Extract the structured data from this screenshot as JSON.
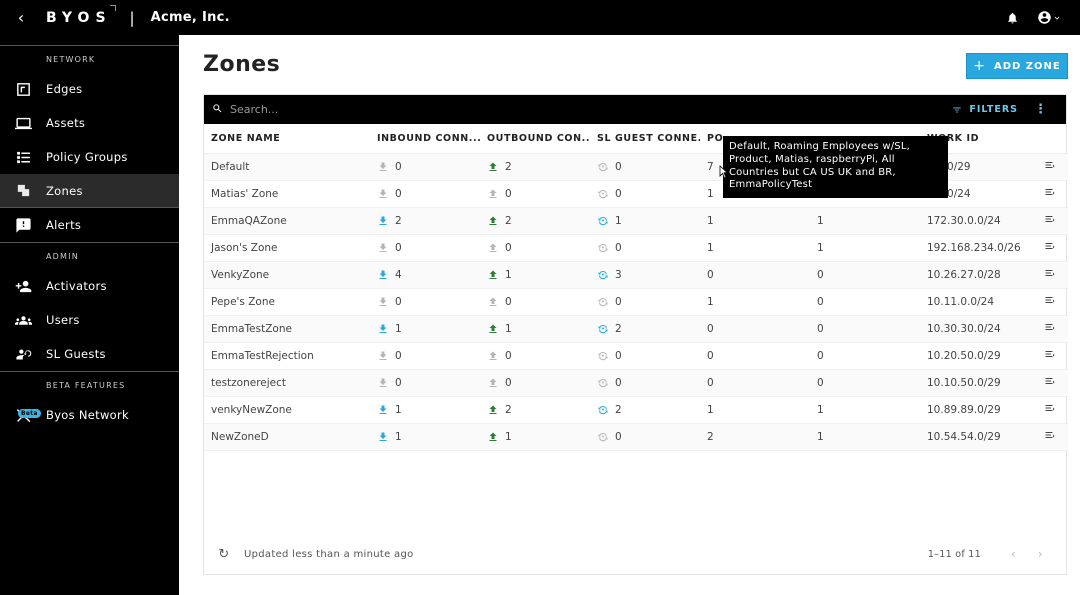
{
  "topbar": {
    "back_icon": "chevron-left-icon",
    "logo": "BYOS",
    "separator": "|",
    "company": "Acme, Inc."
  },
  "sidebar": {
    "sections": [
      {
        "title": "NETWORK",
        "items": [
          {
            "label": "Edges",
            "icon": "edges-icon",
            "active": false
          },
          {
            "label": "Assets",
            "icon": "laptop-icon",
            "active": false
          },
          {
            "label": "Policy Groups",
            "icon": "policy-icon",
            "active": false
          },
          {
            "label": "Zones",
            "icon": "zones-icon",
            "active": true
          },
          {
            "label": "Alerts",
            "icon": "alert-icon",
            "active": false
          }
        ]
      },
      {
        "title": "ADMIN",
        "items": [
          {
            "label": "Activators",
            "icon": "person-add-icon",
            "active": false
          },
          {
            "label": "Users",
            "icon": "people-icon",
            "active": false
          },
          {
            "label": "SL Guests",
            "icon": "guest-icon",
            "active": false
          }
        ]
      },
      {
        "title": "BETA FEATURES",
        "items": [
          {
            "label": "Byos Network",
            "icon": "network-icon",
            "active": false,
            "badge": "Beta"
          }
        ]
      }
    ]
  },
  "main": {
    "title": "Zones",
    "add_button": "ADD ZONE",
    "search_placeholder": "Search...",
    "filters_label": "FILTERS",
    "columns": [
      "ZONE NAME",
      "INBOUND CONN...",
      "OUTBOUND CON...",
      "SL GUEST CONNE...",
      "PO",
      "",
      "WORK ID",
      ""
    ],
    "rows": [
      {
        "name": "Default",
        "inbound": "0",
        "outbound": "2",
        "guest": "0",
        "po": "7",
        "col6": "",
        "network": "0.0.0/29"
      },
      {
        "name": "Matias' Zone",
        "inbound": "0",
        "outbound": "0",
        "guest": "0",
        "po": "1",
        "col6": "",
        "network": "0.0.0/24"
      },
      {
        "name": "EmmaQAZone",
        "inbound": "2",
        "outbound": "2",
        "guest": "1",
        "po": "1",
        "col6": "1",
        "network": "172.30.0.0/24"
      },
      {
        "name": "Jason's Zone",
        "inbound": "0",
        "outbound": "0",
        "guest": "0",
        "po": "1",
        "col6": "1",
        "network": "192.168.234.0/26"
      },
      {
        "name": "VenkyZone",
        "inbound": "4",
        "outbound": "1",
        "guest": "3",
        "po": "0",
        "col6": "0",
        "network": "10.26.27.0/28"
      },
      {
        "name": "Pepe's Zone",
        "inbound": "0",
        "outbound": "0",
        "guest": "0",
        "po": "1",
        "col6": "0",
        "network": "10.11.0.0/24"
      },
      {
        "name": "EmmaTestZone",
        "inbound": "1",
        "outbound": "1",
        "guest": "2",
        "po": "0",
        "col6": "0",
        "network": "10.30.30.0/24"
      },
      {
        "name": "EmmaTestRejection",
        "inbound": "0",
        "outbound": "0",
        "guest": "0",
        "po": "0",
        "col6": "0",
        "network": "10.20.50.0/29"
      },
      {
        "name": "testzonereject",
        "inbound": "0",
        "outbound": "0",
        "guest": "0",
        "po": "0",
        "col6": "0",
        "network": "10.10.50.0/29"
      },
      {
        "name": "venkyNewZone",
        "inbound": "1",
        "outbound": "2",
        "guest": "2",
        "po": "1",
        "col6": "1",
        "network": "10.89.89.0/29"
      },
      {
        "name": "NewZoneD",
        "inbound": "1",
        "outbound": "1",
        "guest": "0",
        "po": "2",
        "col6": "1",
        "network": "10.54.54.0/29"
      }
    ],
    "footer": {
      "updated": "Updated less than a minute ago",
      "pagination": "1–11 of 11"
    },
    "tooltip": "Default, Roaming Employees w/SL, Product, Matias, raspberryPi, All Countries but CA US UK and BR, EmmaPolicyTest"
  },
  "colors": {
    "accent": "#29a8df",
    "active_blue": "#29a8df",
    "green": "#2e7d32",
    "inactive_gray": "#b5b5b5"
  }
}
